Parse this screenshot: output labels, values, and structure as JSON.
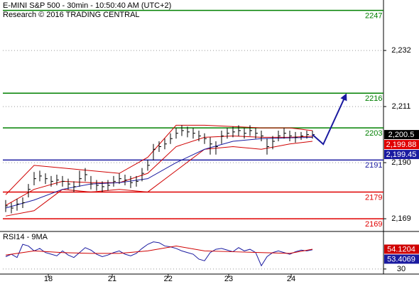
{
  "chart_data": [
    {
      "type": "ohlc",
      "title": "E-MINI S&P 500 - 30min - 10:50:40 AM (UTC+2)",
      "subtitle": "Research © 2016 TRADING CENTRAL",
      "x": [
        0,
        1,
        2,
        3,
        4,
        5,
        6,
        7,
        8,
        9,
        10,
        11,
        12,
        13,
        14,
        15,
        16,
        17,
        18,
        19,
        20,
        21,
        22,
        23,
        24,
        25,
        26,
        27,
        28,
        29,
        30,
        31,
        32,
        33,
        34,
        35,
        36,
        37,
        38,
        39,
        40,
        41,
        42,
        43,
        44,
        45,
        46,
        47,
        48,
        49,
        50,
        51,
        52,
        53,
        54
      ],
      "high": [
        2176,
        2175,
        2176.5,
        2177,
        2182,
        2186.5,
        2187,
        2186,
        2185,
        2185.5,
        2185,
        2184,
        2183,
        2187,
        2188,
        2185,
        2183.5,
        2183,
        2183.5,
        2185,
        2186,
        2185.5,
        2185,
        2185,
        2188,
        2191,
        2197,
        2198,
        2199,
        2201,
        2203,
        2204,
        2203.5,
        2203,
        2202,
        2201,
        2199.5,
        2198,
        2202,
        2203,
        2203.5,
        2204,
        2203,
        2204,
        2203,
        2202,
        2199,
        2200,
        2202,
        2203,
        2202,
        2201.5,
        2201.5,
        2202,
        2202
      ],
      "low": [
        2171.5,
        2171,
        2172,
        2173,
        2177,
        2181.5,
        2183,
        2182,
        2181,
        2181.5,
        2181,
        2180,
        2179,
        2181,
        2183,
        2180,
        2179.5,
        2179,
        2179.5,
        2181,
        2182,
        2181.5,
        2180.5,
        2181,
        2183,
        2187,
        2191,
        2194,
        2195,
        2197,
        2199,
        2200,
        2199.5,
        2199,
        2198,
        2197,
        2193,
        2193,
        2197,
        2199,
        2199.5,
        2200,
        2199,
        2200,
        2199,
        2198,
        2193,
        2195,
        2198,
        2199,
        2198,
        2197.5,
        2198.5,
        2199,
        2199
      ],
      "close": [
        2173.8,
        2173,
        2174.5,
        2175,
        2180,
        2184,
        2185,
        2184,
        2183,
        2183.5,
        2183,
        2182,
        2181,
        2184,
        2185.5,
        2182,
        2181.5,
        2181,
        2181.5,
        2183,
        2184,
        2183.5,
        2182.5,
        2183,
        2186,
        2189,
        2195,
        2196,
        2197,
        2199,
        2201,
        2202,
        2201.5,
        2201,
        2200,
        2199,
        2197,
        2196,
        2200,
        2201,
        2201.5,
        2202,
        2201,
        2202,
        2201,
        2200,
        2196,
        2198,
        2200,
        2201,
        2200,
        2199.5,
        2200,
        2200.5,
        2200.5
      ],
      "bar_color": "#000000",
      "lines": [
        {
          "color": "#d00000",
          "x": [
            0,
            5,
            10,
            15,
            20,
            25,
            30,
            35,
            40,
            45,
            50,
            54
          ],
          "values": [
            2178,
            2189,
            2188,
            2187,
            2186,
            2192,
            2204,
            2204,
            2203.5,
            2203,
            2203,
            2202
          ]
        },
        {
          "color": "#d00000",
          "x": [
            0,
            5,
            10,
            15,
            20,
            25,
            30,
            35,
            40,
            45,
            50,
            54
          ],
          "values": [
            2170,
            2172,
            2180,
            2179,
            2180,
            2179,
            2187,
            2195,
            2196,
            2195,
            2197,
            2198
          ]
        },
        {
          "color": "#d00000",
          "x": [
            0,
            5,
            10,
            15,
            20,
            25,
            30,
            35,
            40,
            45,
            50,
            54
          ],
          "values": [
            2174,
            2180,
            2183,
            2182.5,
            2182.5,
            2186,
            2196,
            2199.5,
            2200,
            2199.5,
            2199.5,
            2199.88
          ]
        },
        {
          "color": "#1a1aa0",
          "x": [
            0,
            5,
            10,
            15,
            20,
            25,
            30,
            35,
            40,
            45,
            50,
            54
          ],
          "values": [
            2173,
            2176,
            2180,
            2182,
            2182.5,
            2184,
            2190,
            2195,
            2198,
            2199,
            2199.3,
            2199.45
          ]
        }
      ],
      "levels": [
        {
          "value": 2247,
          "color": "#008000"
        },
        {
          "value": 2216,
          "color": "#008000"
        },
        {
          "value": 2203,
          "color": "#008000"
        },
        {
          "value": 2191,
          "color": "#1a1aa0"
        },
        {
          "value": 2179,
          "color": "#e00000"
        },
        {
          "value": 2169,
          "color": "#e00000"
        }
      ],
      "projection": {
        "color": "#1a1aa0",
        "x": [
          54,
          55.9,
          59.9
        ],
        "values": [
          2200.5,
          2196.9,
          2215.5
        ]
      },
      "price_labels": [
        {
          "value": 2200.5,
          "label": "2,200.5",
          "color": "#000000"
        },
        {
          "value": 2199.88,
          "label": "2,199.88",
          "color": "#e00000"
        },
        {
          "value": 2199.45,
          "label": "2,199.45",
          "color": "#1a1aa0"
        }
      ],
      "xlim": [
        -0.5,
        66.5
      ],
      "xticks": [
        {
          "value": 7.5,
          "label": "18"
        },
        {
          "value": 18.75,
          "label": "21"
        },
        {
          "value": 28.6,
          "label": "22"
        },
        {
          "value": 39.25,
          "label": "23"
        },
        {
          "value": 50.25,
          "label": "24"
        }
      ],
      "ylim": [
        2164.5,
        2250.9
      ],
      "yticks": [
        {
          "value": 2232,
          "label": "2,232"
        },
        {
          "value": 2211,
          "label": "2,211"
        },
        {
          "value": 2190,
          "label": "2,190"
        },
        {
          "value": 2169,
          "label": "2,169"
        }
      ],
      "grid": true
    },
    {
      "type": "line",
      "title": "RSI14 - 9MA",
      "series": [
        {
          "color": "#1a1aa0",
          "x": [
            0,
            1,
            2,
            3,
            4,
            5,
            6,
            7,
            8,
            9,
            10,
            11,
            12,
            13,
            14,
            15,
            16,
            17,
            18,
            19,
            20,
            21,
            22,
            23,
            24,
            25,
            26,
            27,
            28,
            29,
            30,
            31,
            32,
            33,
            34,
            35,
            36,
            37,
            38,
            39,
            40,
            41,
            42,
            43,
            44,
            45,
            46,
            47,
            48,
            49,
            50,
            51,
            52,
            53,
            54
          ],
          "values": [
            45,
            48,
            44,
            60,
            58,
            52,
            55,
            50,
            48,
            46,
            52,
            47,
            44,
            50,
            56,
            53,
            48,
            45,
            47,
            50,
            52,
            48,
            46,
            49,
            55,
            60,
            63,
            62,
            58,
            57,
            55,
            52,
            50,
            48,
            42,
            40,
            50,
            54,
            55,
            53,
            51,
            56,
            52,
            54,
            50,
            34,
            45,
            50,
            52,
            50,
            48,
            51,
            53,
            52,
            53.4069
          ]
        },
        {
          "color": "#d00000",
          "x": [
            0,
            5,
            10,
            15,
            20,
            25,
            30,
            35,
            40,
            45,
            50,
            54
          ],
          "values": [
            47,
            52,
            50,
            49,
            49,
            52,
            58,
            52,
            51,
            50,
            49,
            54.1204
          ]
        }
      ],
      "xlim": [
        -0.5,
        66.5
      ],
      "ylim": [
        20.4,
        74.8
      ],
      "yticks": [
        30
      ],
      "grid": true
    }
  ]
}
